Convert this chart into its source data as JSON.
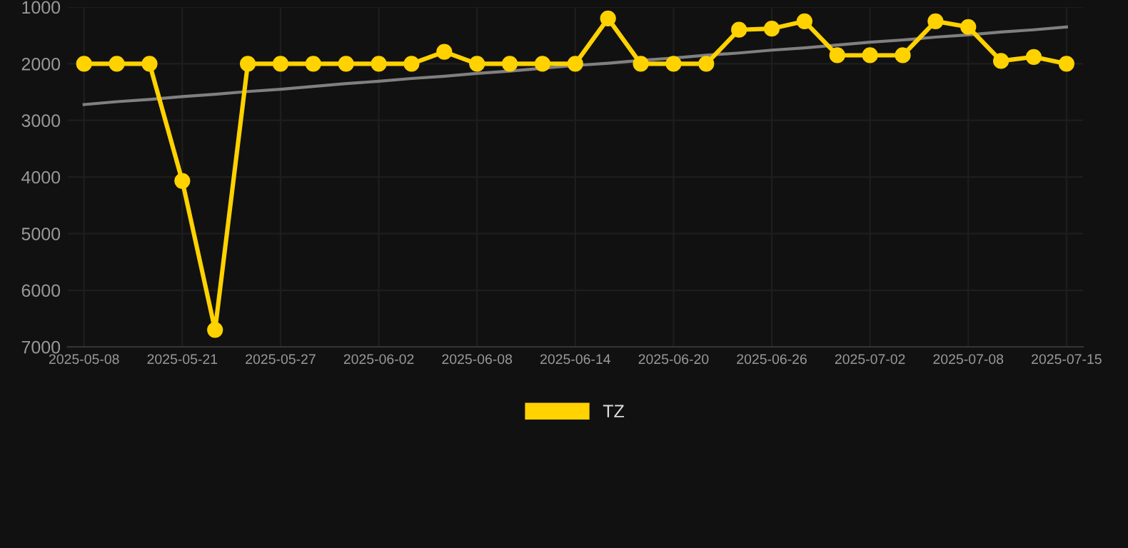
{
  "chart_data": {
    "type": "line",
    "categories": [
      "2025-05-08",
      null,
      null,
      "2025-05-21",
      null,
      null,
      "2025-05-27",
      null,
      null,
      "2025-06-02",
      null,
      null,
      "2025-06-08",
      null,
      null,
      "2025-06-14",
      null,
      null,
      "2025-06-20",
      null,
      null,
      "2025-06-26",
      null,
      null,
      "2025-07-02",
      null,
      null,
      "2025-07-08",
      null,
      null,
      "2025-07-15"
    ],
    "series": [
      {
        "name": "TZ",
        "color": "#ffd200",
        "marker": "circle",
        "values": [
          2000,
          2000,
          2000,
          4070,
          6700,
          2000,
          2000,
          2000,
          2000,
          2000,
          2000,
          1790,
          2000,
          2000,
          2000,
          2000,
          1200,
          2000,
          2000,
          2000,
          1400,
          1380,
          1250,
          1850,
          1850,
          1850,
          1250,
          1350,
          1950,
          1880,
          2000
        ]
      },
      {
        "type": "line",
        "color": "#808080",
        "marker": "none",
        "values": [
          2720,
          2670,
          2630,
          2580,
          2540,
          2490,
          2450,
          2400,
          2350,
          2310,
          2260,
          2220,
          2170,
          2130,
          2080,
          2030,
          1990,
          1940,
          1900,
          1850,
          1810,
          1760,
          1720,
          1670,
          1620,
          1580,
          1530,
          1490,
          1440,
          1400,
          1350
        ]
      }
    ],
    "ylim": [
      7000,
      1000
    ],
    "yticks": [
      1000,
      2000,
      3000,
      4000,
      5000,
      6000,
      7000
    ],
    "grid": true,
    "legend": "bottom"
  }
}
